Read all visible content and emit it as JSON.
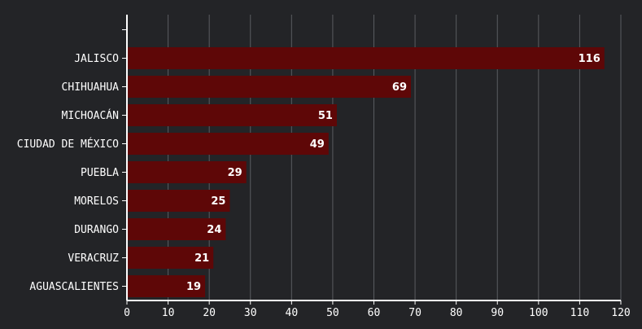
{
  "chart_data": {
    "type": "bar",
    "orientation": "horizontal",
    "categories": [
      "JALISCO",
      "CHIHUAHUA",
      "MICHOACÁN",
      "CIUDAD DE MÉXICO",
      "PUEBLA",
      "MORELOS",
      "DURANGO",
      "VERACRUZ",
      "AGUASCALIENTES"
    ],
    "values": [
      116,
      69,
      51,
      49,
      29,
      25,
      24,
      21,
      19
    ],
    "x_ticks": [
      0,
      10,
      20,
      30,
      40,
      50,
      60,
      70,
      80,
      90,
      100,
      110,
      120
    ],
    "xlim": [
      0,
      120
    ],
    "title": "",
    "xlabel": "",
    "ylabel": "",
    "grid": true,
    "data_labels": true
  },
  "colors": {
    "background": "#232427",
    "bar": "#5e0707",
    "grid": "#5a5c60",
    "axis": "#ffffff",
    "text": "#ffffff"
  }
}
